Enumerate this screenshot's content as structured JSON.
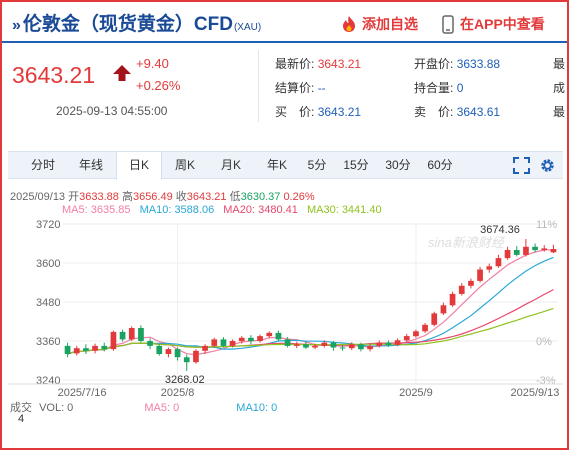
{
  "header": {
    "prefix_icon": "double-chevron-right-icon",
    "title": "伦敦金（现货黄金）CFD",
    "subtitle": "(XAU)",
    "watch_label": "添加自选",
    "watch_icon": "flame-icon",
    "app_label": "在APP中查看",
    "app_icon": "phone-icon"
  },
  "price": {
    "current": "3643.21",
    "change": "+9.40",
    "change_pct": "+0.26%",
    "timestamp": "2025-09-13 04:55:00",
    "trend_icon": "arrow-up-icon"
  },
  "quote": {
    "latest_label": "最新价:",
    "latest_value": "3643.21",
    "settle_label": "结算价:",
    "settle_value": "--",
    "buy_label": "买　价:",
    "buy_value": "3643.21",
    "open_label": "开盘价:",
    "open_value": "3633.88",
    "hold_label": "持合量:",
    "hold_value": "0",
    "sell_label": "卖　价:",
    "sell_value": "3643.61",
    "extra1": "最",
    "extra2": "成",
    "extra3": "最"
  },
  "tabs": [
    "分时",
    "年线",
    "日K",
    "周K",
    "月K",
    "年K",
    "5分",
    "15分",
    "30分",
    "60分"
  ],
  "active_tab": "日K",
  "tools": [
    "expand-icon",
    "settings-gear-icon"
  ],
  "chart_info": {
    "date": "2025/09/13",
    "open_label": "开",
    "open": "3633.88",
    "high_label": "高",
    "high": "3656.49",
    "close_label": "收",
    "close": "3643.21",
    "low_label": "低",
    "low": "3630.37",
    "pct": "0.26%"
  },
  "ma": {
    "ma5_label": "MA5:",
    "ma5": "3635.85",
    "ma10_label": "MA10:",
    "ma10": "3588.06",
    "ma20_label": "MA20:",
    "ma20": "3480.41",
    "ma30_label": "MA30:",
    "ma30": "3441.40"
  },
  "volume": {
    "vol_label": "成交",
    "vol_text": "VOL: 0",
    "ma5_text": "MA5: 0",
    "ma10_text": "MA10: 0",
    "scale": "4"
  },
  "colors": {
    "up": "#e23a3a",
    "down": "#1aa260",
    "ma5": "#f27ea4",
    "ma10": "#29a9d6",
    "ma20": "#e8486c",
    "ma30": "#8fc31f",
    "title": "#1a4a96"
  },
  "chart_data": {
    "type": "candlestick",
    "x_labels": [
      "2025/7/16",
      "2025/8",
      "2025/9",
      "2025/9/13"
    ],
    "y_ticks": [
      3720,
      3600,
      3480,
      3360,
      3240
    ],
    "pct_ticks": [
      "11%",
      "",
      "",
      "0%",
      "-3%"
    ],
    "ylim": [
      3240,
      3720
    ],
    "annotations": {
      "high": "3674.36",
      "low": "3268.02"
    },
    "watermark": "sina新浪财经",
    "candles": [
      [
        3345,
        3320,
        3355,
        3310
      ],
      [
        3322,
        3338,
        3345,
        3315
      ],
      [
        3338,
        3330,
        3350,
        3320
      ],
      [
        3330,
        3345,
        3352,
        3322
      ],
      [
        3345,
        3335,
        3355,
        3328
      ],
      [
        3335,
        3388,
        3392,
        3330
      ],
      [
        3388,
        3365,
        3395,
        3358
      ],
      [
        3365,
        3400,
        3405,
        3360
      ],
      [
        3400,
        3360,
        3408,
        3355
      ],
      [
        3360,
        3345,
        3368,
        3335
      ],
      [
        3345,
        3320,
        3350,
        3315
      ],
      [
        3320,
        3335,
        3340,
        3310
      ],
      [
        3335,
        3310,
        3340,
        3300
      ],
      [
        3310,
        3295,
        3318,
        3268
      ],
      [
        3295,
        3330,
        3335,
        3290
      ],
      [
        3330,
        3345,
        3350,
        3320
      ],
      [
        3345,
        3365,
        3370,
        3340
      ],
      [
        3365,
        3345,
        3372,
        3340
      ],
      [
        3345,
        3360,
        3365,
        3340
      ],
      [
        3360,
        3370,
        3375,
        3352
      ],
      [
        3370,
        3360,
        3378,
        3350
      ],
      [
        3360,
        3375,
        3380,
        3355
      ],
      [
        3375,
        3385,
        3390,
        3368
      ],
      [
        3385,
        3365,
        3392,
        3360
      ],
      [
        3365,
        3345,
        3372,
        3340
      ],
      [
        3345,
        3350,
        3358,
        3338
      ],
      [
        3350,
        3340,
        3358,
        3335
      ],
      [
        3340,
        3345,
        3352,
        3335
      ],
      [
        3345,
        3355,
        3362,
        3340
      ],
      [
        3355,
        3340,
        3360,
        3330
      ],
      [
        3340,
        3338,
        3348,
        3330
      ],
      [
        3338,
        3350,
        3356,
        3332
      ],
      [
        3350,
        3335,
        3355,
        3328
      ],
      [
        3335,
        3345,
        3352,
        3328
      ],
      [
        3345,
        3355,
        3362,
        3340
      ],
      [
        3355,
        3348,
        3362,
        3342
      ],
      [
        3348,
        3362,
        3368,
        3344
      ],
      [
        3362,
        3375,
        3382,
        3358
      ],
      [
        3375,
        3390,
        3395,
        3370
      ],
      [
        3390,
        3410,
        3415,
        3385
      ],
      [
        3410,
        3445,
        3450,
        3405
      ],
      [
        3445,
        3470,
        3478,
        3440
      ],
      [
        3470,
        3505,
        3512,
        3465
      ],
      [
        3505,
        3530,
        3538,
        3500
      ],
      [
        3530,
        3545,
        3552,
        3522
      ],
      [
        3545,
        3580,
        3588,
        3540
      ],
      [
        3580,
        3590,
        3598,
        3570
      ],
      [
        3590,
        3615,
        3625,
        3585
      ],
      [
        3615,
        3640,
        3650,
        3610
      ],
      [
        3640,
        3625,
        3652,
        3620
      ],
      [
        3625,
        3650,
        3674,
        3620
      ],
      [
        3650,
        3640,
        3660,
        3632
      ],
      [
        3640,
        3645,
        3655,
        3635
      ],
      [
        3633,
        3643,
        3656,
        3630
      ]
    ]
  }
}
